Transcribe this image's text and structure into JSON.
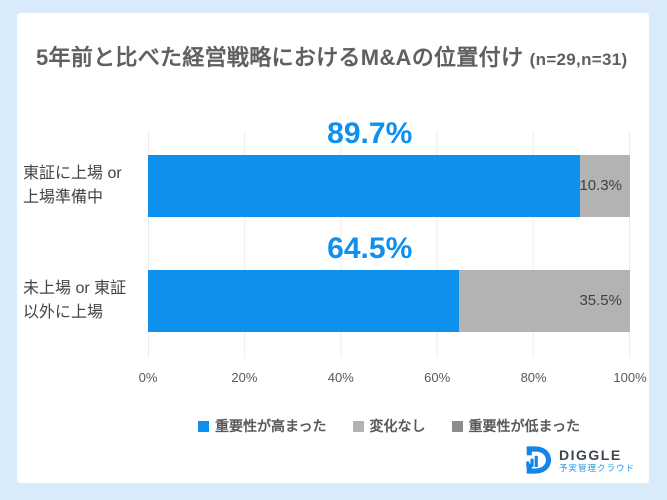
{
  "header": {
    "title": "5年前と比べた経営戦略におけるM&Aの位置付け",
    "sample_note": "(n=29,n=31)"
  },
  "colors": {
    "background": "#D9EAFA",
    "card": "#FFFFFF",
    "accent_blue": "#0E90EE",
    "no_change_gray": "#B3B3B3",
    "decreased_gray": "#8C8C8C",
    "title_text": "#606060"
  },
  "chart_data": {
    "type": "bar",
    "orientation": "horizontal-stacked",
    "title": "5年前と比べた経営戦略におけるM&Aの位置付け (n=29,n=31)",
    "categories": [
      "東証に上場 or 上場準備中",
      "未上場 or 東証以外に上場"
    ],
    "category_lines": [
      [
        "東証に上場 or",
        "上場準備中"
      ],
      [
        "未上場 or 東証",
        "以外に上場"
      ]
    ],
    "series": [
      {
        "name": "重要性が高まった",
        "values": [
          89.7,
          64.5
        ],
        "color": "#0E90EE"
      },
      {
        "name": "変化なし",
        "values": [
          10.3,
          35.5
        ],
        "color": "#B3B3B3"
      },
      {
        "name": "重要性が低まった",
        "values": [
          0,
          0
        ],
        "color": "#8C8C8C"
      }
    ],
    "value_labels": [
      "89.7%",
      "64.5%"
    ],
    "segment_labels": [
      "10.3%",
      "35.5%"
    ],
    "xlim": [
      0,
      100
    ],
    "x_ticks": [
      "0%",
      "20%",
      "40%",
      "60%",
      "80%",
      "100%"
    ],
    "grid": true,
    "legend_position": "bottom"
  },
  "footer": {
    "logo_name": "DIGGLE",
    "logo_subtext": "予実管理クラウド"
  }
}
